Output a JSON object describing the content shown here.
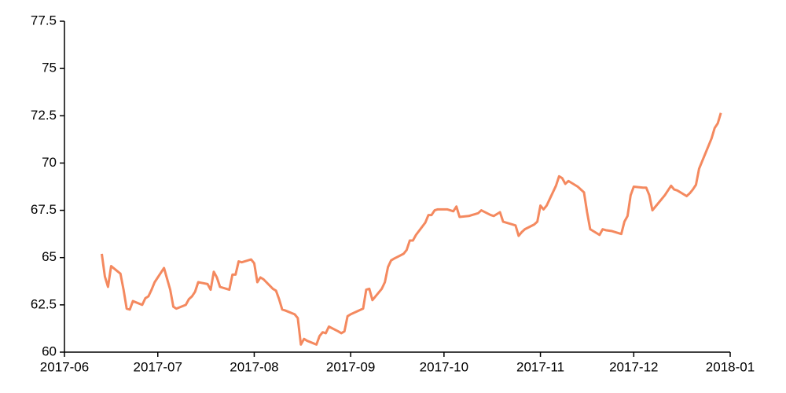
{
  "chart_data": {
    "type": "line",
    "x": [
      "2017-06-13",
      "2017-06-14",
      "2017-06-15",
      "2017-06-16",
      "2017-06-19",
      "2017-06-20",
      "2017-06-21",
      "2017-06-22",
      "2017-06-23",
      "2017-06-26",
      "2017-06-27",
      "2017-06-28",
      "2017-06-29",
      "2017-06-30",
      "2017-07-03",
      "2017-07-05",
      "2017-07-06",
      "2017-07-07",
      "2017-07-10",
      "2017-07-11",
      "2017-07-12",
      "2017-07-13",
      "2017-07-14",
      "2017-07-17",
      "2017-07-18",
      "2017-07-19",
      "2017-07-20",
      "2017-07-21",
      "2017-07-24",
      "2017-07-25",
      "2017-07-26",
      "2017-07-27",
      "2017-07-28",
      "2017-07-31",
      "2017-08-01",
      "2017-08-02",
      "2017-08-03",
      "2017-08-04",
      "2017-08-07",
      "2017-08-08",
      "2017-08-09",
      "2017-08-10",
      "2017-08-11",
      "2017-08-14",
      "2017-08-15",
      "2017-08-16",
      "2017-08-17",
      "2017-08-18",
      "2017-08-21",
      "2017-08-22",
      "2017-08-23",
      "2017-08-24",
      "2017-08-25",
      "2017-08-28",
      "2017-08-29",
      "2017-08-30",
      "2017-08-31",
      "2017-09-01",
      "2017-09-05",
      "2017-09-06",
      "2017-09-07",
      "2017-09-08",
      "2017-09-11",
      "2017-09-12",
      "2017-09-13",
      "2017-09-14",
      "2017-09-15",
      "2017-09-18",
      "2017-09-19",
      "2017-09-20",
      "2017-09-21",
      "2017-09-22",
      "2017-09-25",
      "2017-09-26",
      "2017-09-27",
      "2017-09-28",
      "2017-09-29",
      "2017-10-02",
      "2017-10-03",
      "2017-10-04",
      "2017-10-05",
      "2017-10-06",
      "2017-10-09",
      "2017-10-10",
      "2017-10-11",
      "2017-10-12",
      "2017-10-13",
      "2017-10-16",
      "2017-10-17",
      "2017-10-18",
      "2017-10-19",
      "2017-10-20",
      "2017-10-23",
      "2017-10-24",
      "2017-10-25",
      "2017-10-26",
      "2017-10-27",
      "2017-10-30",
      "2017-10-31",
      "2017-11-01",
      "2017-11-02",
      "2017-11-03",
      "2017-11-06",
      "2017-11-07",
      "2017-11-08",
      "2017-11-09",
      "2017-11-10",
      "2017-11-13",
      "2017-11-14",
      "2017-11-15",
      "2017-11-16",
      "2017-11-17",
      "2017-11-20",
      "2017-11-21",
      "2017-11-22",
      "2017-11-24",
      "2017-11-27",
      "2017-11-28",
      "2017-11-29",
      "2017-11-30",
      "2017-12-01",
      "2017-12-04",
      "2017-12-05",
      "2017-12-06",
      "2017-12-07",
      "2017-12-08",
      "2017-12-11",
      "2017-12-12",
      "2017-12-13",
      "2017-12-14",
      "2017-12-15",
      "2017-12-18",
      "2017-12-19",
      "2017-12-20",
      "2017-12-21",
      "2017-12-22",
      "2017-12-26",
      "2017-12-27",
      "2017-12-28",
      "2017-12-29"
    ],
    "series": [
      {
        "color": "#f4895f",
        "values": [
          65.2,
          64.0,
          63.45,
          64.55,
          64.15,
          63.3,
          62.3,
          62.25,
          62.7,
          62.5,
          62.85,
          62.95,
          63.3,
          63.7,
          64.45,
          63.3,
          62.4,
          62.3,
          62.5,
          62.8,
          62.95,
          63.2,
          63.7,
          63.6,
          63.3,
          64.25,
          63.95,
          63.45,
          63.3,
          64.1,
          64.1,
          64.8,
          64.75,
          64.9,
          64.7,
          63.7,
          63.95,
          63.85,
          63.35,
          63.25,
          62.8,
          62.25,
          62.2,
          62.0,
          61.8,
          60.4,
          60.7,
          60.6,
          60.4,
          60.85,
          61.05,
          61.0,
          61.35,
          61.1,
          61.0,
          61.1,
          61.9,
          62.0,
          62.3,
          63.3,
          63.35,
          62.75,
          63.35,
          63.7,
          64.5,
          64.85,
          64.95,
          65.2,
          65.4,
          65.9,
          65.9,
          66.2,
          66.85,
          67.25,
          67.25,
          67.5,
          67.55,
          67.55,
          67.5,
          67.45,
          67.7,
          67.15,
          67.2,
          67.25,
          67.3,
          67.35,
          67.5,
          67.25,
          67.2,
          67.3,
          67.4,
          66.9,
          66.75,
          66.7,
          66.15,
          66.35,
          66.5,
          66.75,
          66.9,
          67.75,
          67.55,
          67.75,
          68.8,
          69.3,
          69.2,
          68.9,
          69.05,
          68.75,
          68.6,
          68.45,
          67.4,
          66.5,
          66.2,
          66.5,
          66.45,
          66.4,
          66.25,
          66.9,
          67.2,
          68.3,
          68.75,
          68.7,
          68.7,
          68.3,
          67.5,
          67.7,
          68.3,
          68.55,
          68.8,
          68.6,
          68.55,
          68.25,
          68.4,
          68.6,
          68.85,
          69.7,
          71.3,
          71.85,
          72.1,
          72.65
        ]
      }
    ],
    "xlim": [
      "2017-06-01",
      "2018-01-01"
    ],
    "xticks": [
      "2017-06",
      "2017-07",
      "2017-08",
      "2017-09",
      "2017-10",
      "2017-11",
      "2017-12",
      "2018-01"
    ],
    "ylim": [
      60,
      77.5
    ],
    "yticks": [
      60,
      62.5,
      65,
      67.5,
      70,
      72.5,
      75,
      77.5
    ],
    "grid": false
  }
}
